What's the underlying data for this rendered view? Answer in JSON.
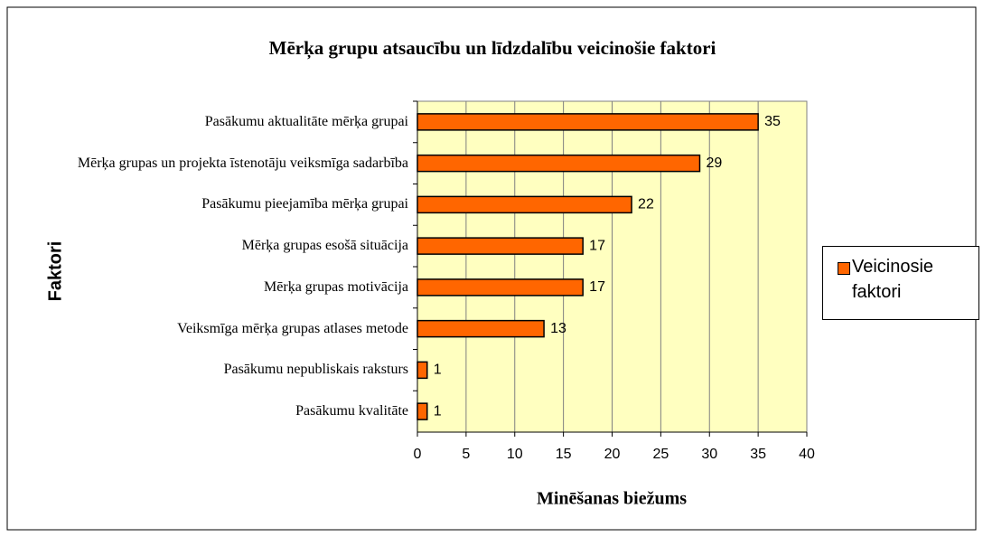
{
  "chart_data": {
    "type": "bar",
    "orientation": "horizontal",
    "title": "Mērķa grupu atsaucību un līdzdalību veicinošie faktori",
    "x_label": "Minēšanas biežums",
    "y_label": "Faktori",
    "categories": [
      "Pasākumu aktualitāte mērķa grupai",
      "Mērķa grupas un projekta īstenotāju veiksmīga sadarbība",
      "Pasākumu pieejamība mērķa grupai",
      "Mērķa grupas esošā situācija",
      "Mērķa grupas motivācija",
      "Veiksmīga mērķa grupas atlases metode",
      "Pasākumu nepubliskais raksturs",
      "Pasākumu kvalitāte"
    ],
    "series": [
      {
        "name": "Veicinosie faktori",
        "color": "#ff6600",
        "values": [
          35,
          29,
          22,
          17,
          17,
          13,
          1,
          1
        ]
      }
    ],
    "xlim": [
      0,
      40
    ],
    "xticks": [
      0,
      5,
      10,
      15,
      20,
      25,
      30,
      35,
      40
    ],
    "grid": true,
    "legend": "right"
  }
}
